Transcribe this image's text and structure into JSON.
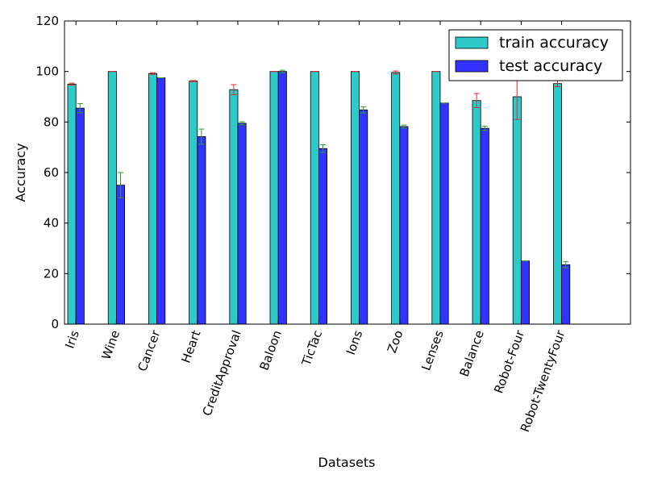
{
  "chart_data": {
    "type": "bar",
    "title": "",
    "xlabel": "Datasets",
    "ylabel": "Accuracy",
    "ylim": [
      0,
      120
    ],
    "yticks": [
      0,
      20,
      40,
      60,
      80,
      100,
      120
    ],
    "grid": false,
    "legend_position": "top-right",
    "categories": [
      "Iris",
      "Wine",
      "Cancer",
      "Heart",
      "CreditApproval",
      "Baloon",
      "TicTac",
      "Ions",
      "Zoo",
      "Lenses",
      "Balance",
      "Robot-Four",
      "Robot-TwentyFour"
    ],
    "series": [
      {
        "name": "train accuracy",
        "color": "#2ec9c9",
        "error_color": "#e8262b",
        "values": [
          95.0,
          100.0,
          99.2,
          96.2,
          92.8,
          100.0,
          100.0,
          100.0,
          99.6,
          100.0,
          88.5,
          90.0,
          95.2
        ],
        "errors": [
          0.4,
          0.0,
          0.3,
          0.2,
          2.0,
          0.0,
          0.0,
          0.0,
          0.6,
          0.0,
          2.8,
          9.0,
          1.2
        ]
      },
      {
        "name": "test accuracy",
        "color": "#3333ff",
        "error_color": "#2ca02c",
        "values": [
          85.5,
          55.0,
          97.5,
          74.2,
          79.5,
          100.0,
          69.5,
          84.8,
          78.2,
          87.5,
          77.5,
          25.0,
          23.5
        ],
        "errors": [
          1.8,
          5.0,
          0.0,
          3.0,
          0.6,
          0.5,
          1.5,
          1.2,
          0.6,
          0.0,
          0.8,
          0.0,
          1.2
        ]
      }
    ]
  }
}
